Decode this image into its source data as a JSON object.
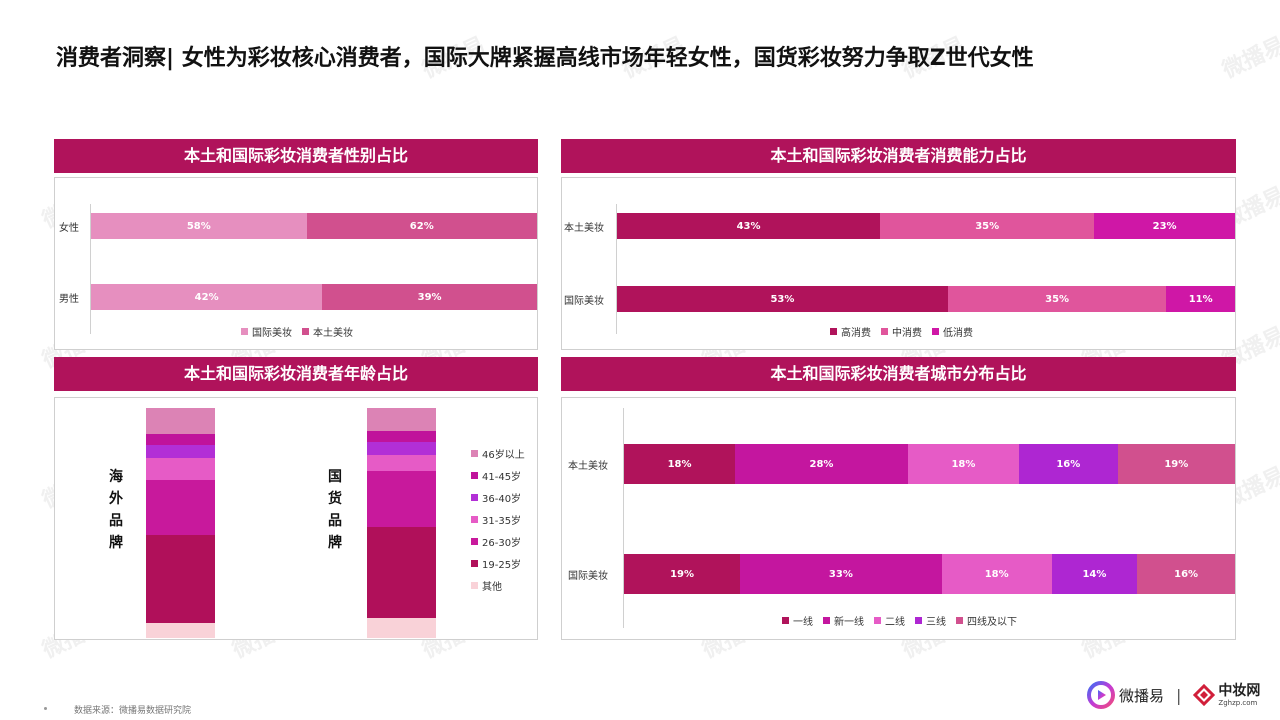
{
  "page": {
    "title": "消费者洞察| 女性为彩妆核心消费者，国际大牌紧握高线市场年轻女性，国货彩妆努力争取Z世代女性",
    "source": "数据来源：微播易数据研究院",
    "watermark": "微播易",
    "brand_left": "微播易",
    "brand_sep": "|",
    "brand_right": "中妆网",
    "brand_right_sub": "Zghzp.com"
  },
  "chart_data": [
    {
      "type": "bar",
      "orientation": "horizontal",
      "stacked": true,
      "title": "本土和国际彩妆消费者性别占比",
      "categories": [
        "女性",
        "男性"
      ],
      "series": [
        {
          "name": "国际美妆",
          "values": [
            58,
            42
          ],
          "labels": [
            "58%",
            "42%"
          ],
          "color": "#e68fbf"
        },
        {
          "name": "本土美妆",
          "values": [
            62,
            39
          ],
          "labels": [
            "62%",
            "39%"
          ],
          "color": "#d1508e"
        }
      ],
      "legend": "bottom"
    },
    {
      "type": "bar",
      "orientation": "horizontal",
      "stacked": true,
      "title": "本土和国际彩妆消费者消费能力占比",
      "categories": [
        "本土美妆",
        "国际美妆"
      ],
      "series": [
        {
          "name": "高消费",
          "values": [
            43,
            53
          ],
          "labels": [
            "43%",
            "53%"
          ],
          "color": "#b0135b"
        },
        {
          "name": "中消费",
          "values": [
            35,
            35
          ],
          "labels": [
            "35%",
            "35%"
          ],
          "color": "#e0559c"
        },
        {
          "name": "低消费",
          "values": [
            23,
            11
          ],
          "labels": [
            "23%",
            "11%"
          ],
          "color": "#cf17a6"
        }
      ],
      "legend": "bottom"
    },
    {
      "type": "bar",
      "orientation": "vertical",
      "stacked": true,
      "title": "本土和国际彩妆消费者年龄占比",
      "categories": [
        "海外品牌",
        "国货品牌"
      ],
      "series": [
        {
          "name": "46岁以上",
          "values": [
            12,
            10
          ],
          "color": "#dc83b5"
        },
        {
          "name": "41-45岁",
          "values": [
            5,
            5
          ],
          "color": "#c0139b"
        },
        {
          "name": "36-40岁",
          "values": [
            6,
            6
          ],
          "color": "#b22fd6"
        },
        {
          "name": "31-35岁",
          "values": [
            10,
            7
          ],
          "color": "#e65bc6"
        },
        {
          "name": "26-30岁",
          "values": [
            25,
            25
          ],
          "color": "#c8199c"
        },
        {
          "name": "19-25岁",
          "values": [
            40,
            40
          ],
          "color": "#b0105a"
        },
        {
          "name": "其他",
          "values": [
            7,
            9
          ],
          "color": "#f9d2d8"
        }
      ],
      "legend": "right"
    },
    {
      "type": "bar",
      "orientation": "horizontal",
      "stacked": true,
      "title": "本土和国际彩妆消费者城市分布占比",
      "categories": [
        "本土美妆",
        "国际美妆"
      ],
      "series": [
        {
          "name": "一线",
          "values": [
            18,
            19
          ],
          "labels": [
            "18%",
            "19%"
          ],
          "color": "#b0135b"
        },
        {
          "name": "新一线",
          "values": [
            28,
            33
          ],
          "labels": [
            "28%",
            "33%"
          ],
          "color": "#c4169f"
        },
        {
          "name": "二线",
          "values": [
            18,
            18
          ],
          "labels": [
            "18%",
            "18%"
          ],
          "color": "#e65bc6"
        },
        {
          "name": "三线",
          "values": [
            16,
            14
          ],
          "labels": [
            "16%",
            "14%"
          ],
          "color": "#ae26d2"
        },
        {
          "name": "四线及以下",
          "values": [
            19,
            16
          ],
          "labels": [
            "19%",
            "16%"
          ],
          "color": "#d1508e"
        }
      ],
      "legend": "bottom"
    }
  ],
  "icons": {
    "watermark_icon": "broadcast-logo-icon",
    "brand_left_icon": "play-logo-icon",
    "brand_right_icon": "zhongzhuang-logo-icon"
  }
}
